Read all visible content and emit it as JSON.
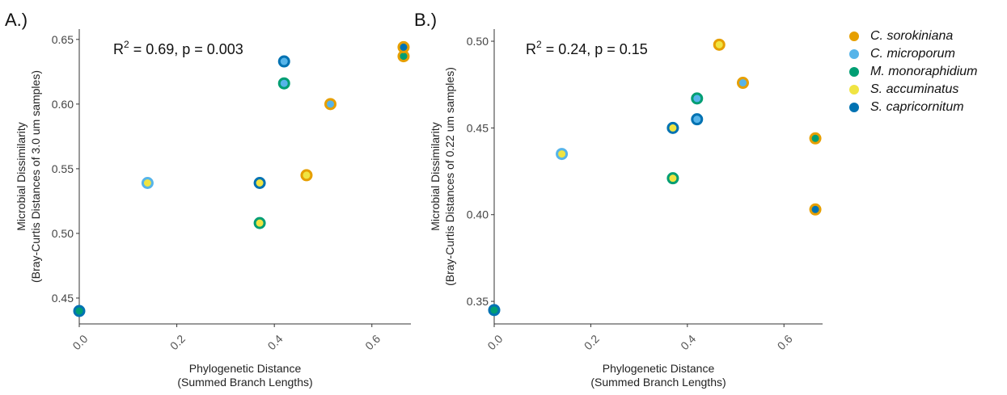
{
  "legend": [
    {
      "label": "C. sorokiniana",
      "color": "#E69F00"
    },
    {
      "label": "C. microporum",
      "color": "#56B4E9"
    },
    {
      "label": "M. monoraphidium",
      "color": "#009E73"
    },
    {
      "label": "S. accuminatus",
      "color": "#F0E442"
    },
    {
      "label": "S. capricornitum",
      "color": "#0072B2"
    }
  ],
  "chart_data": [
    {
      "type": "scatter",
      "panel_label": "A.)",
      "annotation": {
        "r2": "0.69",
        "p": "0.003"
      },
      "xlabel": "Phylogenetic Distance\n(Summed Branch Lengths)",
      "ylabel": "Microbial Dissimilarity\n(Bray-Curtis Distances of 3.0 um samples)",
      "xlim": [
        0.0,
        0.68
      ],
      "ylim": [
        0.43,
        0.658
      ],
      "xticks": [
        0.0,
        0.2,
        0.4,
        0.6
      ],
      "xtick_labels": [
        "0.0",
        "0.2",
        "0.4",
        "0.6"
      ],
      "yticks": [
        0.45,
        0.5,
        0.55,
        0.6,
        0.65
      ],
      "ytick_labels": [
        "0.45",
        "0.50",
        "0.55",
        "0.60",
        "0.65"
      ],
      "grid": false,
      "points": [
        {
          "x": 0.0,
          "y": 0.44,
          "outer": "#0072B2",
          "inner": "#009E73"
        },
        {
          "x": 0.14,
          "y": 0.539,
          "outer": "#56B4E9",
          "inner": "#F0E442"
        },
        {
          "x": 0.37,
          "y": 0.508,
          "outer": "#009E73",
          "inner": "#F0E442"
        },
        {
          "x": 0.37,
          "y": 0.539,
          "outer": "#0072B2",
          "inner": "#F0E442"
        },
        {
          "x": 0.42,
          "y": 0.616,
          "outer": "#009E73",
          "inner": "#56B4E9"
        },
        {
          "x": 0.42,
          "y": 0.633,
          "outer": "#0072B2",
          "inner": "#56B4E9"
        },
        {
          "x": 0.466,
          "y": 0.545,
          "outer": "#E69F00",
          "inner": "#F0E442"
        },
        {
          "x": 0.515,
          "y": 0.6,
          "outer": "#E69F00",
          "inner": "#56B4E9"
        },
        {
          "x": 0.665,
          "y": 0.637,
          "outer": "#E69F00",
          "inner": "#009E73"
        },
        {
          "x": 0.665,
          "y": 0.644,
          "outer": "#E69F00",
          "inner": "#0072B2"
        }
      ]
    },
    {
      "type": "scatter",
      "panel_label": "B.)",
      "annotation": {
        "r2": "0.24",
        "p": "0.15"
      },
      "xlabel": "Phylogenetic Distance\n(Summed Branch Lengths)",
      "ylabel": "Microbial Dissimilarity\n(Bray-Curtis Distances of 0.22 um samples)",
      "xlim": [
        0.0,
        0.68
      ],
      "ylim": [
        0.337,
        0.507
      ],
      "xticks": [
        0.0,
        0.2,
        0.4,
        0.6
      ],
      "xtick_labels": [
        "0.0",
        "0.2",
        "0.4",
        "0.6"
      ],
      "yticks": [
        0.35,
        0.4,
        0.45,
        0.5
      ],
      "ytick_labels": [
        "0.35",
        "0.40",
        "0.45",
        "0.50"
      ],
      "grid": false,
      "points": [
        {
          "x": 0.0,
          "y": 0.345,
          "outer": "#0072B2",
          "inner": "#009E73"
        },
        {
          "x": 0.14,
          "y": 0.435,
          "outer": "#56B4E9",
          "inner": "#F0E442"
        },
        {
          "x": 0.37,
          "y": 0.421,
          "outer": "#009E73",
          "inner": "#F0E442"
        },
        {
          "x": 0.37,
          "y": 0.45,
          "outer": "#0072B2",
          "inner": "#F0E442"
        },
        {
          "x": 0.42,
          "y": 0.467,
          "outer": "#009E73",
          "inner": "#56B4E9"
        },
        {
          "x": 0.42,
          "y": 0.455,
          "outer": "#0072B2",
          "inner": "#56B4E9"
        },
        {
          "x": 0.466,
          "y": 0.498,
          "outer": "#E69F00",
          "inner": "#F0E442"
        },
        {
          "x": 0.515,
          "y": 0.476,
          "outer": "#E69F00",
          "inner": "#56B4E9"
        },
        {
          "x": 0.665,
          "y": 0.444,
          "outer": "#E69F00",
          "inner": "#009E73"
        },
        {
          "x": 0.665,
          "y": 0.403,
          "outer": "#E69F00",
          "inner": "#0072B2"
        }
      ]
    }
  ]
}
